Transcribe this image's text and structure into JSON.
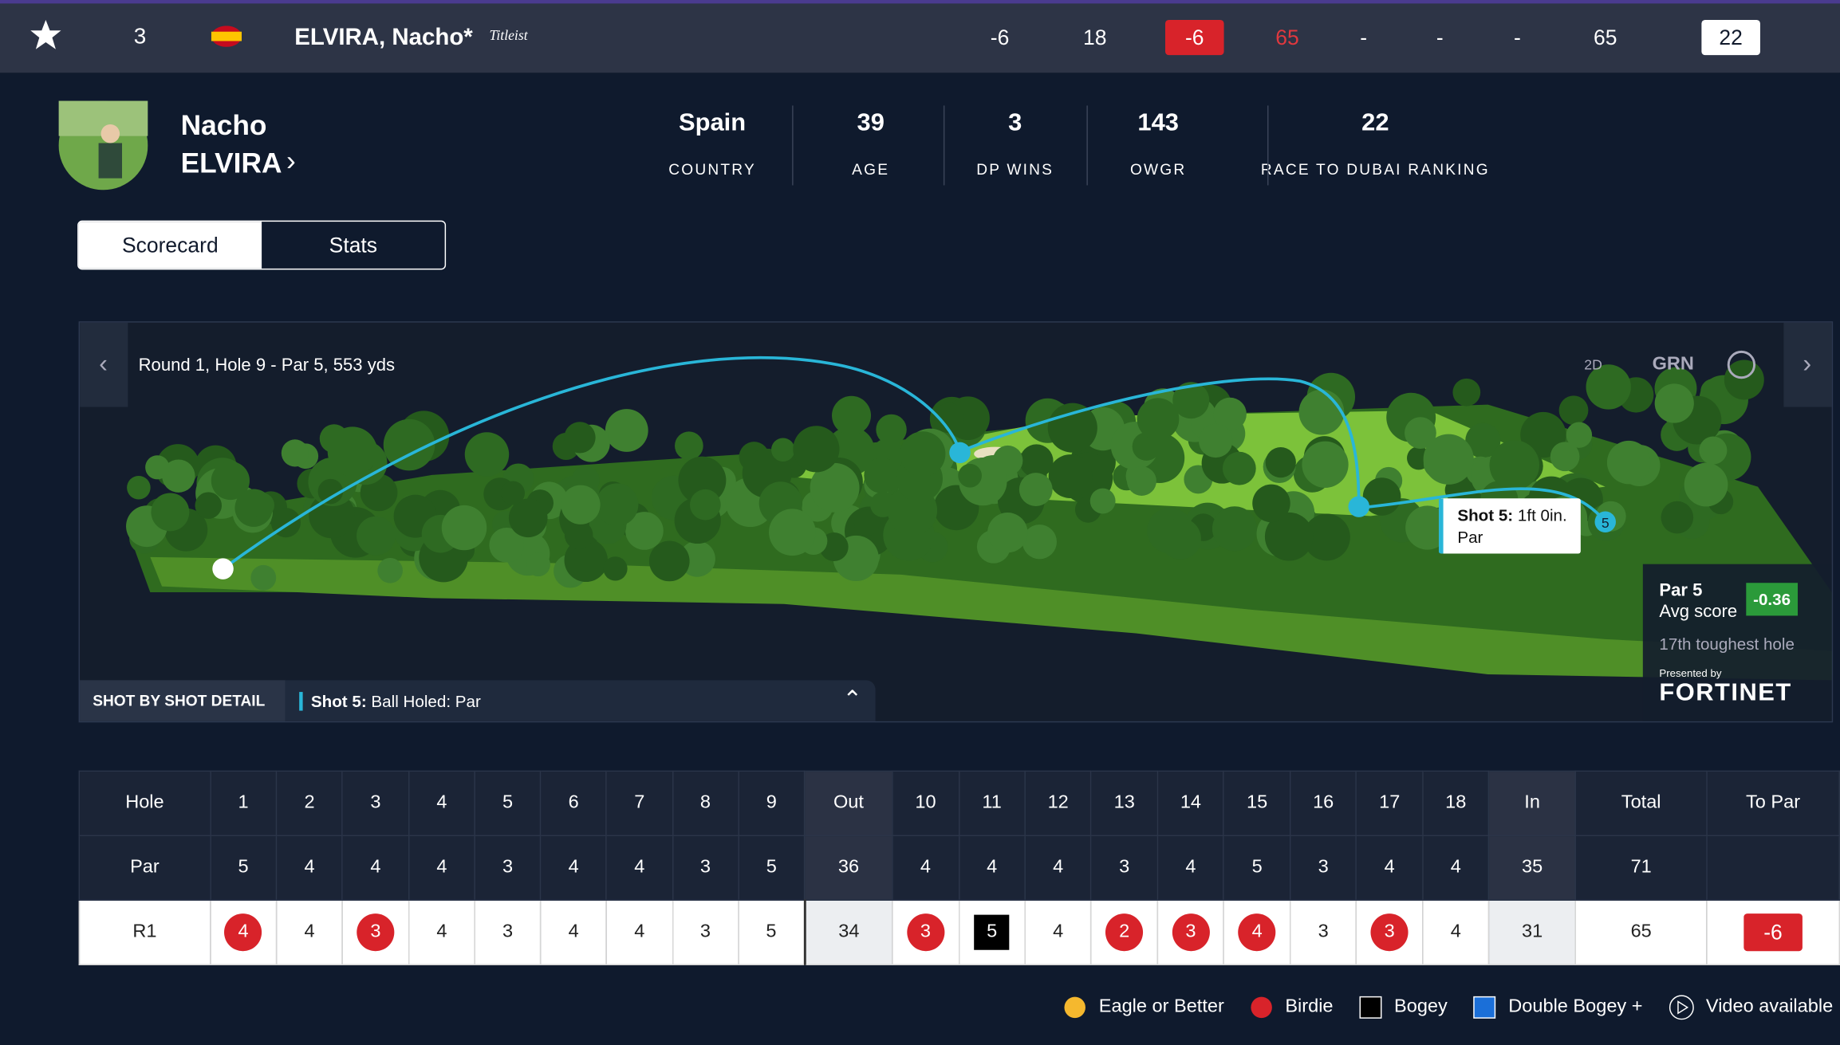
{
  "leaderboard_row": {
    "position": "3",
    "name": "ELVIRA, Nacho*",
    "brand": "Titleist",
    "cells": [
      "-6",
      "18",
      "-6",
      "65",
      "-",
      "-",
      "-",
      "65",
      "22"
    ]
  },
  "player": {
    "first_name": "Nacho",
    "last_name": "ELVIRA",
    "stats": [
      {
        "value": "Spain",
        "label": "COUNTRY"
      },
      {
        "value": "39",
        "label": "AGE"
      },
      {
        "value": "3",
        "label": "DP WINS"
      },
      {
        "value": "143",
        "label": "OWGR"
      },
      {
        "value": "22",
        "label": "RACE TO DUBAI RANKING"
      }
    ]
  },
  "tabs": [
    "Scorecard",
    "Stats"
  ],
  "course": {
    "title": "Round 1, Hole 9 - Par 5, 553 yds",
    "controls": [
      "2D",
      "GRN"
    ],
    "tooltip": {
      "shot": "Shot 5:",
      "distance": "1ft 0in.",
      "result": "Par"
    },
    "marker": "5",
    "hole_info": {
      "par": "Par 5",
      "avg_label": "Avg score",
      "avg": "-0.36",
      "rank": "17th toughest hole",
      "presented": "Presented by",
      "sponsor": "FORTINET"
    },
    "detail": {
      "label": "SHOT BY SHOT DETAIL",
      "shot": "Shot 5:",
      "text": "Ball Holed: Par"
    }
  },
  "scorecard": {
    "rows": [
      [
        "Hole",
        1,
        2,
        3,
        4,
        5,
        6,
        7,
        8,
        9,
        "Out",
        10,
        11,
        12,
        13,
        14,
        15,
        16,
        17,
        18,
        "In",
        "Total",
        "To Par"
      ],
      [
        "Par",
        5,
        4,
        4,
        4,
        3,
        4,
        4,
        3,
        5,
        36,
        4,
        4,
        4,
        3,
        4,
        5,
        3,
        4,
        4,
        35,
        71,
        null
      ],
      [
        "R1",
        4,
        4,
        3,
        4,
        3,
        4,
        4,
        3,
        5,
        34,
        3,
        5,
        4,
        2,
        3,
        4,
        3,
        3,
        4,
        31,
        65,
        "-6"
      ]
    ]
  },
  "legend": [
    "Eagle or Better",
    "Birdie",
    "Bogey",
    "Double Bogey +",
    "Video available"
  ]
}
